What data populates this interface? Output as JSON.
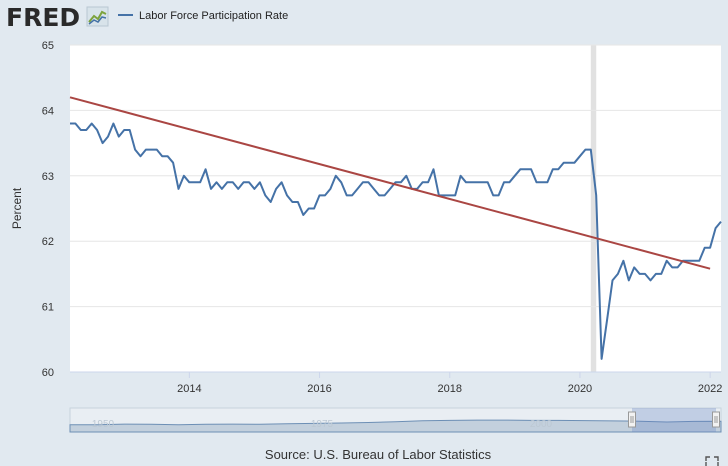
{
  "brand": {
    "logo_text": "FRED"
  },
  "source_text": "Source: U.S. Bureau of Labor Statistics",
  "navigator": {
    "labels": [
      "1950",
      "1975",
      "2000"
    ]
  },
  "colors": {
    "series": "#4572a7",
    "trend": "#aa4643",
    "recession": "#e1e1e1",
    "background": "#e1e9f0",
    "plot": "#ffffff"
  },
  "icons": {
    "logo_graph": "fred-graph-icon",
    "fullscreen": "fullscreen-icon"
  },
  "chart_data": {
    "type": "line",
    "title": "",
    "xlabel": "",
    "ylabel": "Percent",
    "ylim": [
      60,
      65
    ],
    "xlim": [
      "2012-03",
      "2022-03"
    ],
    "y_ticks": [
      "60",
      "61",
      "62",
      "63",
      "64",
      "65"
    ],
    "x_ticks": [
      "2014",
      "2016",
      "2018",
      "2020",
      "2022"
    ],
    "grid": "horizontal",
    "legend_position": "top",
    "recession": {
      "start": "2020-03",
      "end": "2020-04"
    },
    "series": [
      {
        "name": "Labor Force Participation Rate",
        "color": "#4572a7",
        "x": [
          "2012-03",
          "2012-04",
          "2012-05",
          "2012-06",
          "2012-07",
          "2012-08",
          "2012-09",
          "2012-10",
          "2012-11",
          "2012-12",
          "2013-01",
          "2013-02",
          "2013-03",
          "2013-04",
          "2013-05",
          "2013-06",
          "2013-07",
          "2013-08",
          "2013-09",
          "2013-10",
          "2013-11",
          "2013-12",
          "2014-01",
          "2014-02",
          "2014-03",
          "2014-04",
          "2014-05",
          "2014-06",
          "2014-07",
          "2014-08",
          "2014-09",
          "2014-10",
          "2014-11",
          "2014-12",
          "2015-01",
          "2015-02",
          "2015-03",
          "2015-04",
          "2015-05",
          "2015-06",
          "2015-07",
          "2015-08",
          "2015-09",
          "2015-10",
          "2015-11",
          "2015-12",
          "2016-01",
          "2016-02",
          "2016-03",
          "2016-04",
          "2016-05",
          "2016-06",
          "2016-07",
          "2016-08",
          "2016-09",
          "2016-10",
          "2016-11",
          "2016-12",
          "2017-01",
          "2017-02",
          "2017-03",
          "2017-04",
          "2017-05",
          "2017-06",
          "2017-07",
          "2017-08",
          "2017-09",
          "2017-10",
          "2017-11",
          "2017-12",
          "2018-01",
          "2018-02",
          "2018-03",
          "2018-04",
          "2018-05",
          "2018-06",
          "2018-07",
          "2018-08",
          "2018-09",
          "2018-10",
          "2018-11",
          "2018-12",
          "2019-01",
          "2019-02",
          "2019-03",
          "2019-04",
          "2019-05",
          "2019-06",
          "2019-07",
          "2019-08",
          "2019-09",
          "2019-10",
          "2019-11",
          "2019-12",
          "2020-01",
          "2020-02",
          "2020-03",
          "2020-04",
          "2020-05",
          "2020-06",
          "2020-07",
          "2020-08",
          "2020-09",
          "2020-10",
          "2020-11",
          "2020-12",
          "2021-01",
          "2021-02",
          "2021-03",
          "2021-04",
          "2021-05",
          "2021-06",
          "2021-07",
          "2021-08",
          "2021-09",
          "2021-10",
          "2021-11",
          "2021-12",
          "2022-01",
          "2022-02",
          "2022-03"
        ],
        "values": [
          63.8,
          63.8,
          63.7,
          63.7,
          63.8,
          63.7,
          63.5,
          63.6,
          63.8,
          63.6,
          63.7,
          63.7,
          63.4,
          63.3,
          63.4,
          63.4,
          63.4,
          63.3,
          63.3,
          63.2,
          62.8,
          63.0,
          62.9,
          62.9,
          62.9,
          63.1,
          62.8,
          62.9,
          62.8,
          62.9,
          62.9,
          62.8,
          62.9,
          62.9,
          62.8,
          62.9,
          62.7,
          62.6,
          62.8,
          62.9,
          62.7,
          62.6,
          62.6,
          62.4,
          62.5,
          62.5,
          62.7,
          62.7,
          62.8,
          63.0,
          62.9,
          62.7,
          62.7,
          62.8,
          62.9,
          62.9,
          62.8,
          62.7,
          62.7,
          62.8,
          62.9,
          62.9,
          63.0,
          62.8,
          62.8,
          62.9,
          62.9,
          63.1,
          62.7,
          62.7,
          62.7,
          62.7,
          63.0,
          62.9,
          62.9,
          62.9,
          62.9,
          62.9,
          62.7,
          62.7,
          62.9,
          62.9,
          63.0,
          63.1,
          63.1,
          63.1,
          62.9,
          62.9,
          62.9,
          63.1,
          63.1,
          63.2,
          63.2,
          63.2,
          63.3,
          63.4,
          63.4,
          62.7,
          60.2,
          60.8,
          61.4,
          61.5,
          61.7,
          61.4,
          61.6,
          61.5,
          61.5,
          61.4,
          61.5,
          61.5,
          61.7,
          61.6,
          61.6,
          61.7,
          61.7,
          61.7,
          61.7,
          61.9,
          61.9,
          62.2,
          62.3
        ]
      },
      {
        "name": "",
        "color": "#aa4643",
        "x": [
          "2012-03",
          "2022-01"
        ],
        "values": [
          64.2,
          61.58
        ]
      }
    ]
  }
}
